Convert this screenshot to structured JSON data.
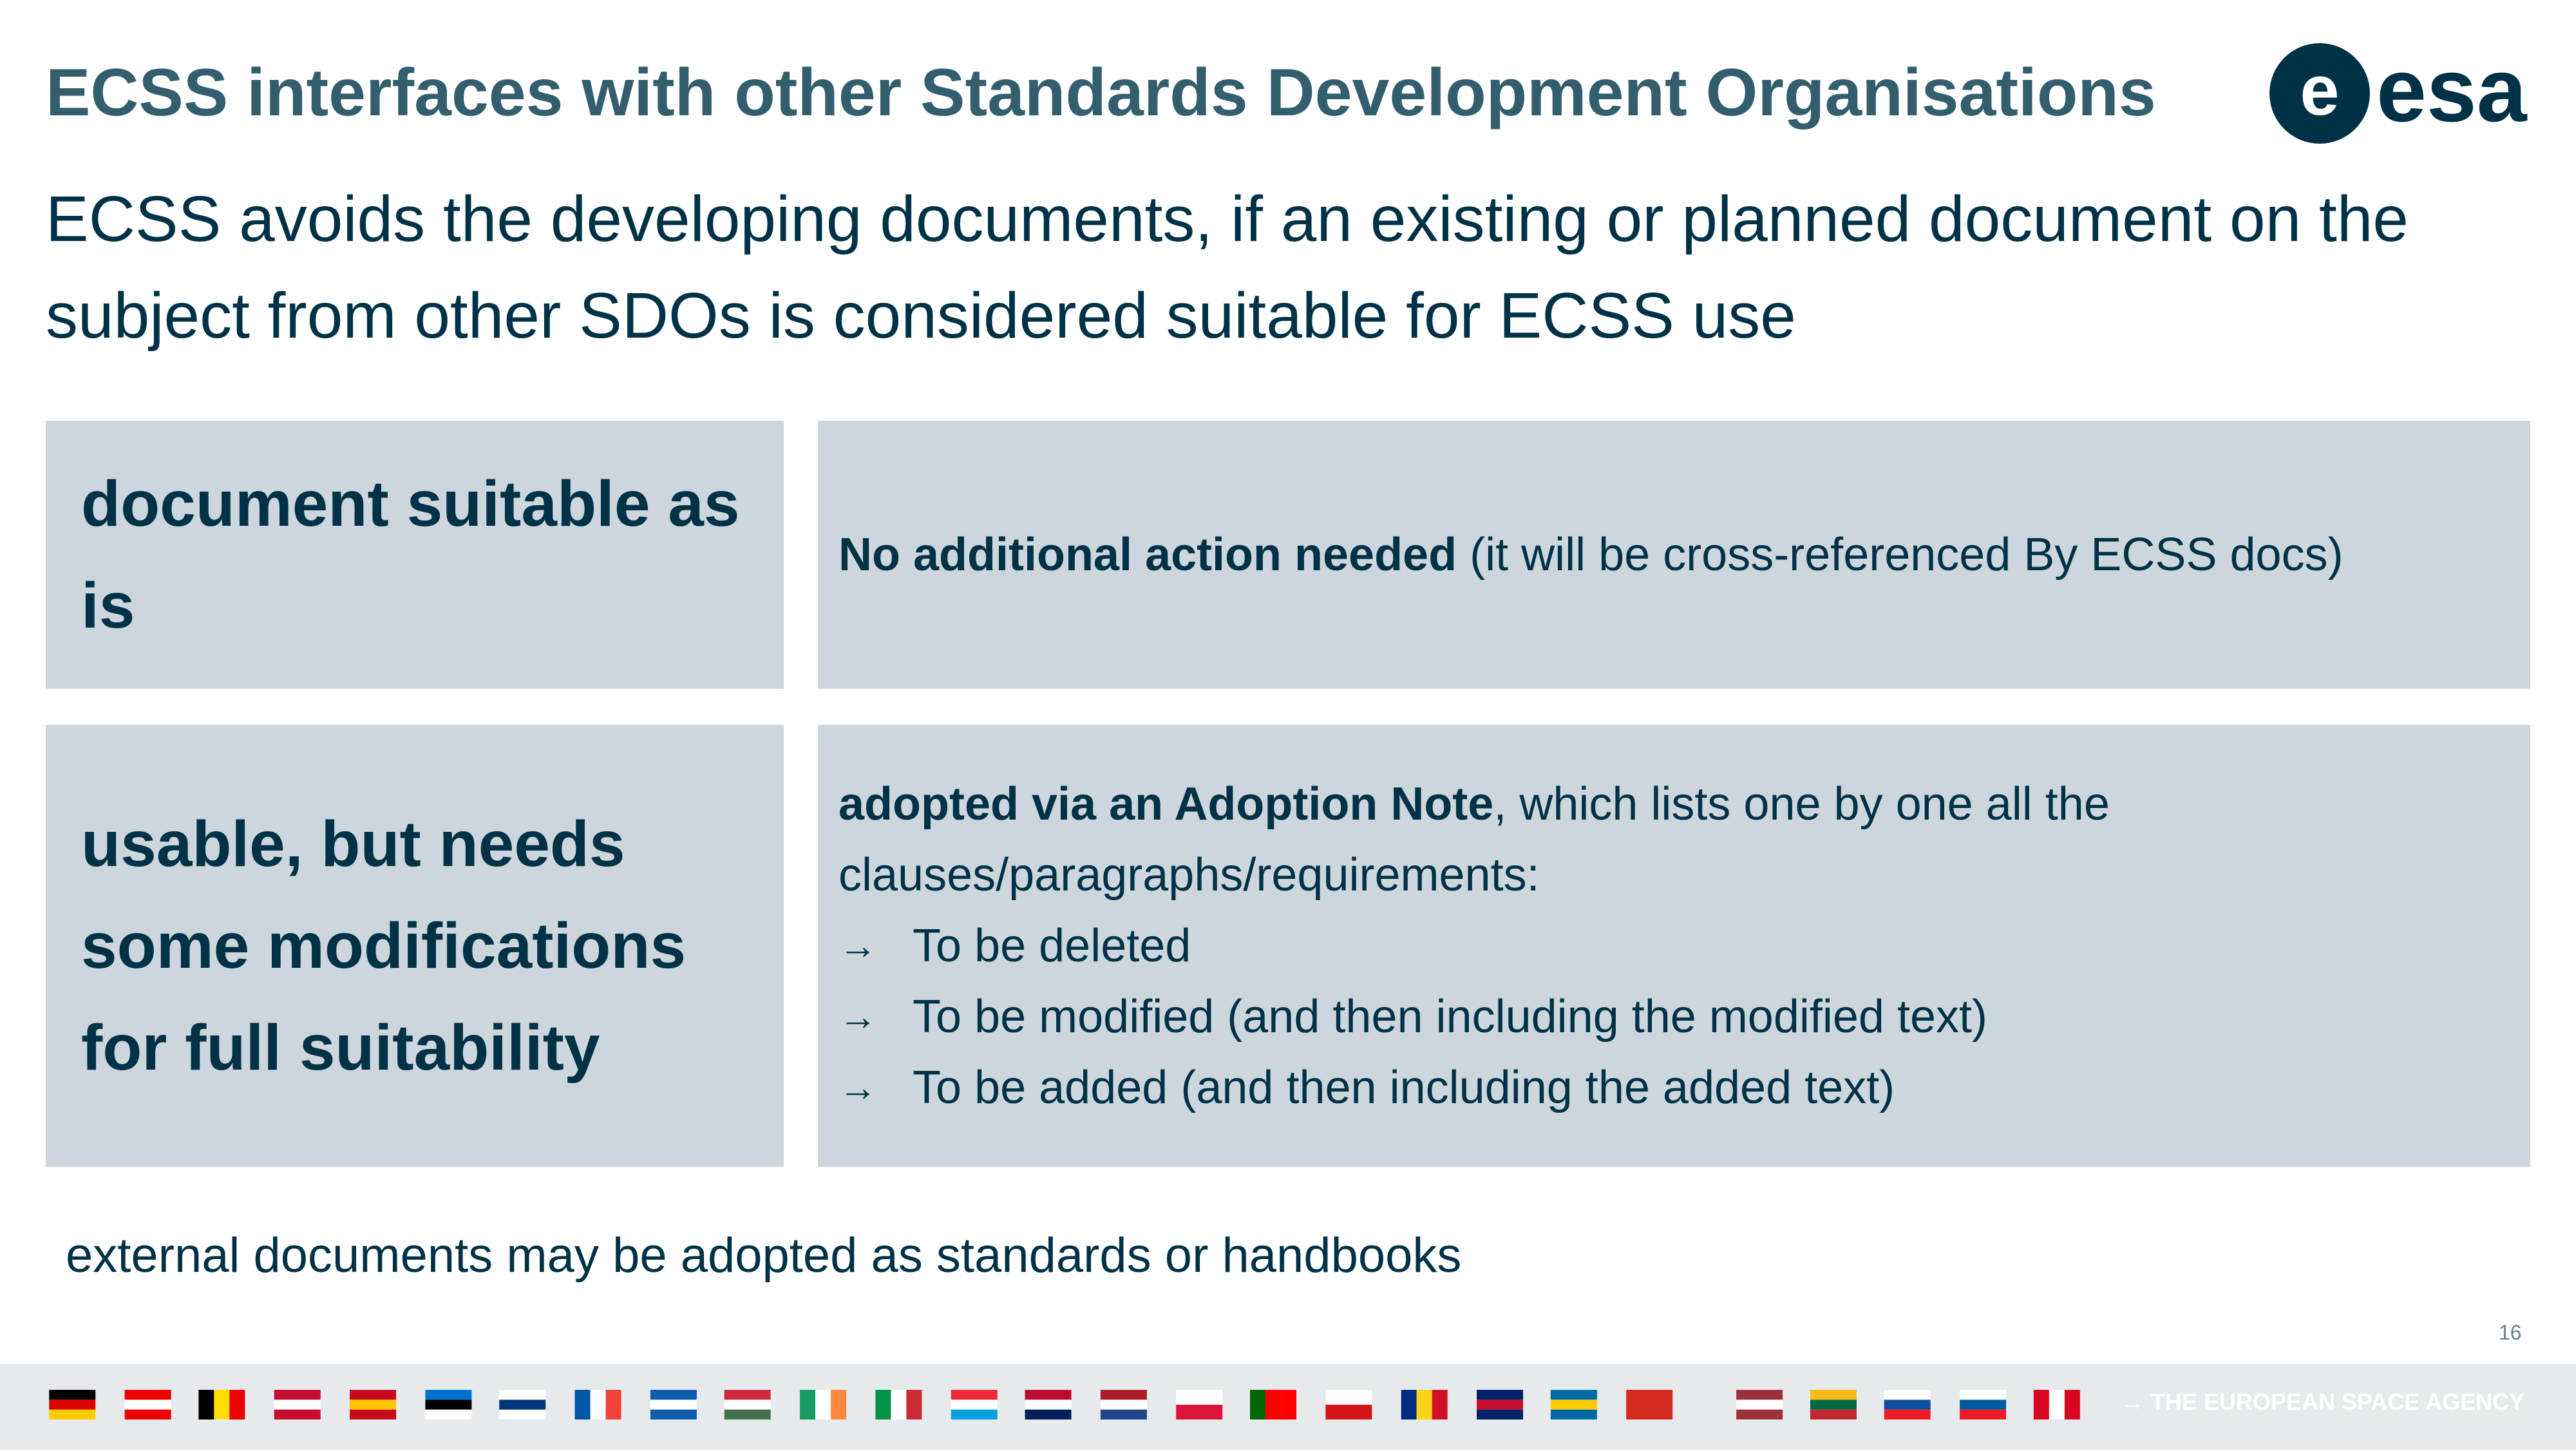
{
  "header": {
    "title": "ECSS interfaces with other Standards Development Organisations",
    "subtitle": "ECSS avoids the developing documents, if an existing or planned document on the subject from other SDOs is considered suitable for ECSS use",
    "logo": "esa"
  },
  "rows": [
    {
      "label": "document suitable as is",
      "bold": "No additional action needed",
      "text": "(it will be cross-referenced By ECSS docs)"
    },
    {
      "label": "usable, but needs some modifications for full suitability",
      "bold": "adopted via an Adoption Note",
      "text": ", which lists one by one all the clauses/paragraphs/requirements:",
      "bullets": [
        "To be deleted",
        "To be modified (and then including the modified text)",
        "To be added (and then including the added text)"
      ]
    }
  ],
  "footnote": "external documents may be adopted as standards or handbooks",
  "page_number": "16",
  "footer": "THE EUROPEAN SPACE AGENCY"
}
